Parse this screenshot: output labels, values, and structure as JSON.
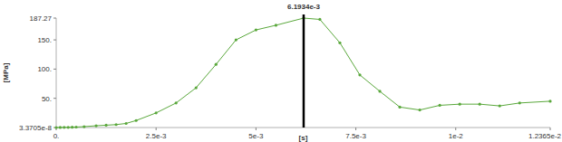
{
  "chart_data": {
    "type": "line",
    "x_label": "[s]",
    "y_label": "[MPa]",
    "x": [
      0,
      0.0001,
      0.0002,
      0.0003,
      0.0004,
      0.0005,
      0.0007,
      0.001,
      0.00125,
      0.0015,
      0.00175,
      0.002,
      0.0025,
      0.003,
      0.0035,
      0.004,
      0.0045,
      0.005,
      0.0055,
      0.0061934,
      0.0066,
      0.0071,
      0.0076,
      0.0081,
      0.0086,
      0.0091,
      0.0096,
      0.0101,
      0.0106,
      0.0111,
      0.0116,
      0.012365
    ],
    "values": [
      3.3705e-08,
      0.1,
      0.2,
      0.3,
      0.5,
      0.8,
      1.5,
      3,
      4,
      5,
      7,
      12,
      25,
      42,
      68,
      108,
      150,
      167,
      175,
      187.27,
      185,
      145,
      90,
      62,
      35,
      30,
      38,
      40,
      40,
      37,
      42,
      45
    ],
    "color": "#5aa83c",
    "marker": "circle",
    "grid": false,
    "xlim": [
      0,
      0.012365
    ],
    "ylim": [
      3.3705e-08,
      187.27
    ],
    "xticks": [
      {
        "value": 0,
        "label": "0."
      },
      {
        "value": 0.0025,
        "label": "2.5e-3"
      },
      {
        "value": 0.005,
        "label": "5e-3"
      },
      {
        "value": 0.0075,
        "label": "7.5e-3"
      },
      {
        "value": 0.01,
        "label": "1e-2"
      },
      {
        "value": 0.012365,
        "label": "1.2365e-2"
      }
    ],
    "yticks": [
      {
        "value": 3.3705e-08,
        "label": "3.3705e-8"
      },
      {
        "value": 50,
        "label": "50."
      },
      {
        "value": 100,
        "label": "100."
      },
      {
        "value": 150,
        "label": "150."
      },
      {
        "value": 187.27,
        "label": "187.27"
      }
    ],
    "annotations": [
      {
        "x": 0.0061934,
        "label": "6.1934e-3"
      }
    ]
  }
}
